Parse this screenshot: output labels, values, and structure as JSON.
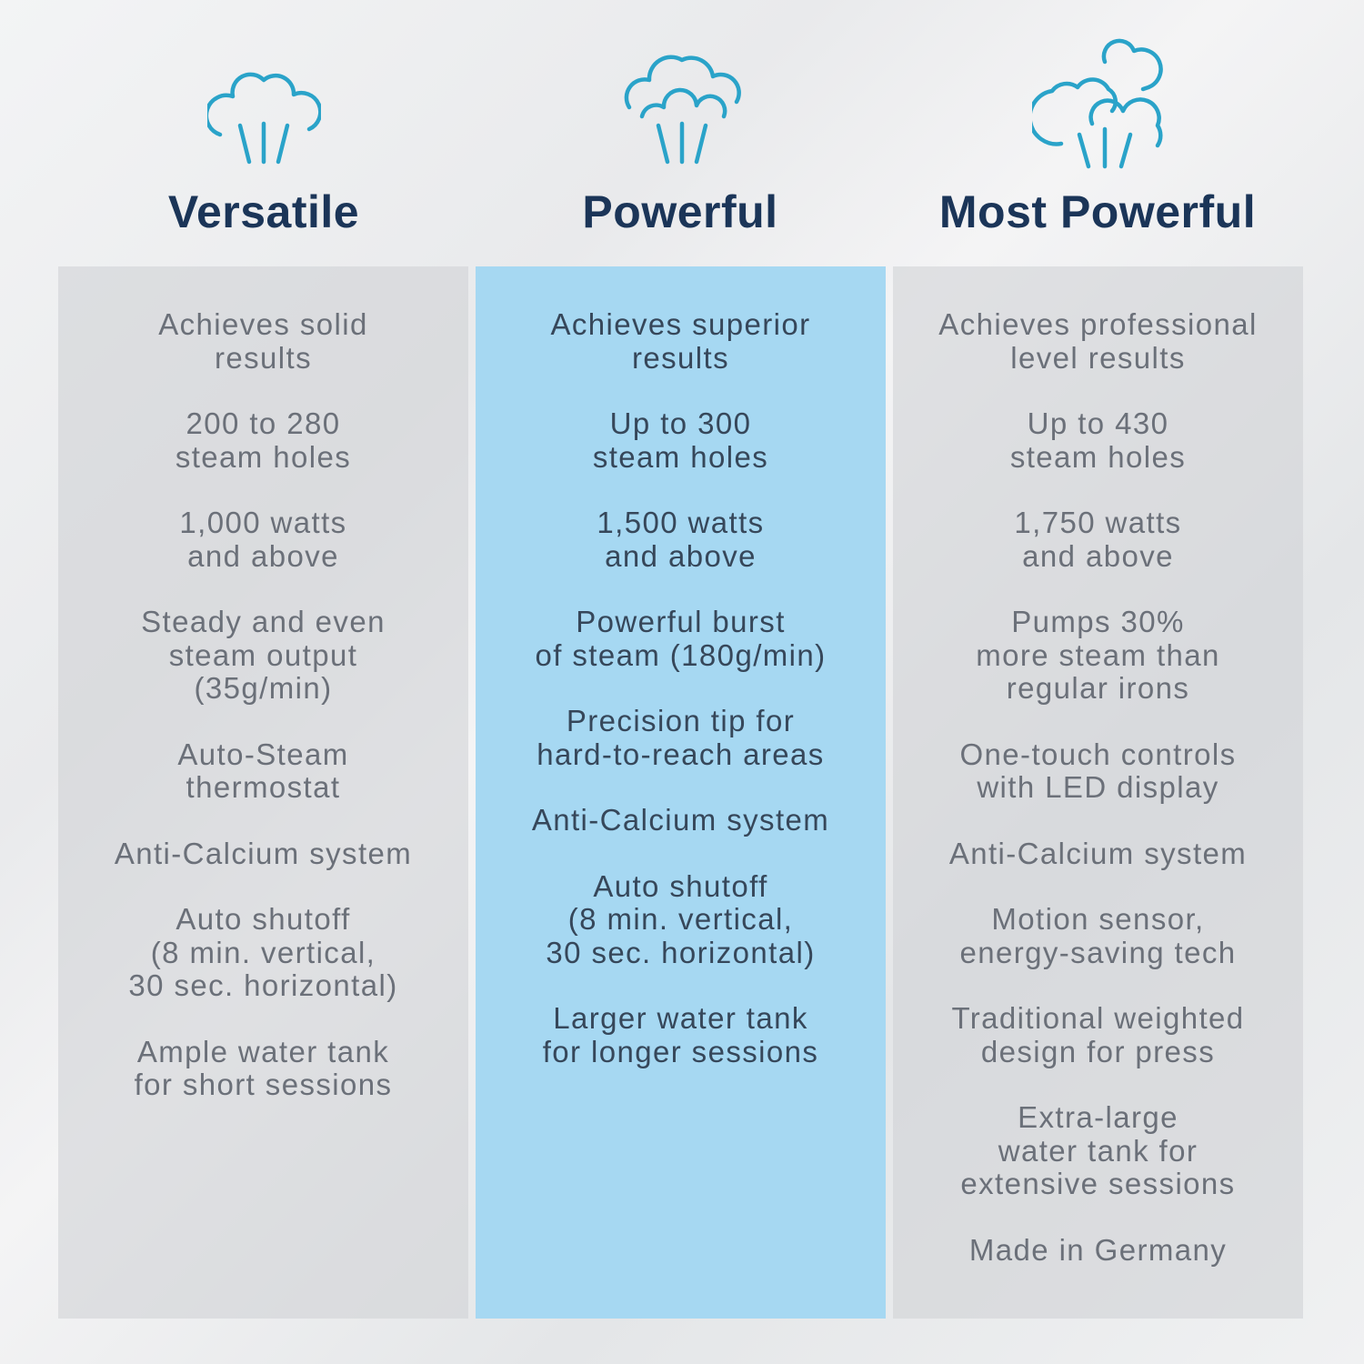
{
  "colors": {
    "icon": "#2aa3c9",
    "title": "#1b3558",
    "highlight_column": "#a6d8f2",
    "gray_text": "#6b7079",
    "blue_text": "#36475a"
  },
  "columns": [
    {
      "icon": "steam-cloud-icon",
      "title": "Versatile",
      "items": [
        "Achieves solid\nresults",
        "200 to 280\nsteam holes",
        "1,000 watts\nand above",
        "Steady and even\nsteam output\n(35g/min)",
        "Auto-Steam\nthermostat",
        "Anti-Calcium system",
        "Auto shutoff\n(8 min. vertical,\n30 sec. horizontal)",
        "Ample water tank\nfor short sessions"
      ]
    },
    {
      "icon": "steam-cloud-large-icon",
      "title": "Powerful",
      "items": [
        "Achieves superior\nresults",
        "Up to 300\nsteam holes",
        "1,500 watts\nand above",
        "Powerful burst\nof steam (180g/min)",
        "Precision tip for\nhard-to-reach areas",
        "Anti-Calcium system",
        "Auto shutoff\n(8 min. vertical,\n30 sec. horizontal)",
        "Larger water tank\nfor longer sessions"
      ]
    },
    {
      "icon": "steam-clouds-multiple-icon",
      "title": "Most Powerful",
      "items": [
        "Achieves professional\nlevel results",
        "Up to 430\nsteam holes",
        "1,750 watts\nand above",
        "Pumps 30%\nmore steam than\nregular irons",
        "One-touch controls\nwith LED display",
        "Anti-Calcium system",
        "Motion sensor,\nenergy-saving tech",
        "Traditional weighted\ndesign for press",
        "Extra-large\nwater tank for\nextensive sessions",
        "Made in Germany"
      ]
    }
  ]
}
